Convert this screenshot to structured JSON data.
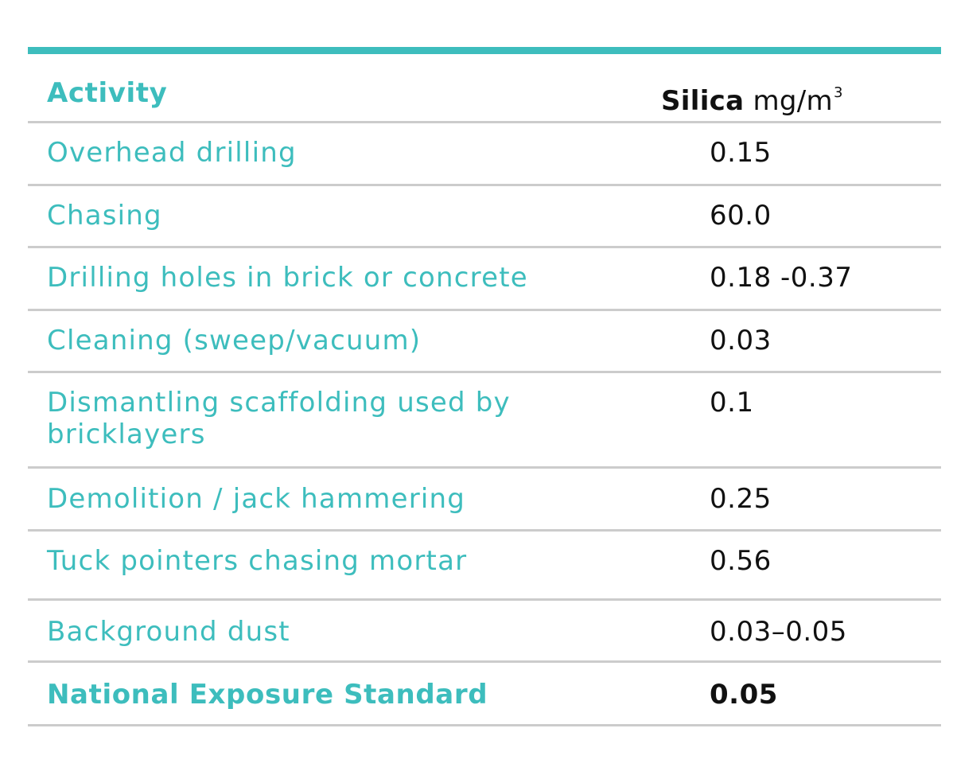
{
  "table": {
    "header": {
      "activity": "Activity",
      "silica_bold": "Silica",
      "silica_unit": "mg/m",
      "silica_unit_sup": "3"
    },
    "rows": [
      {
        "activity": "Overhead drilling",
        "silica": "0.15"
      },
      {
        "activity": "Chasing",
        "silica": "60.0"
      },
      {
        "activity": "Drilling holes in brick or concrete",
        "silica": "0.18 -0.37"
      },
      {
        "activity": "Cleaning (sweep/vacuum)",
        "silica": "0.03"
      },
      {
        "activity": "Dismantling scaffolding used by bricklayers",
        "silica": "0.1"
      },
      {
        "activity": "Demolition / jack hammering",
        "silica": "0.25"
      },
      {
        "activity": "Tuck pointers chasing mortar",
        "silica": "0.56"
      },
      {
        "activity": "Background dust",
        "silica": "0.03–0.05"
      }
    ],
    "standard": {
      "activity": "National Exposure Standard",
      "silica": "0.05"
    }
  },
  "colors": {
    "accent": "#3dbdbd",
    "rule": "#cccccc",
    "text": "#111111"
  }
}
